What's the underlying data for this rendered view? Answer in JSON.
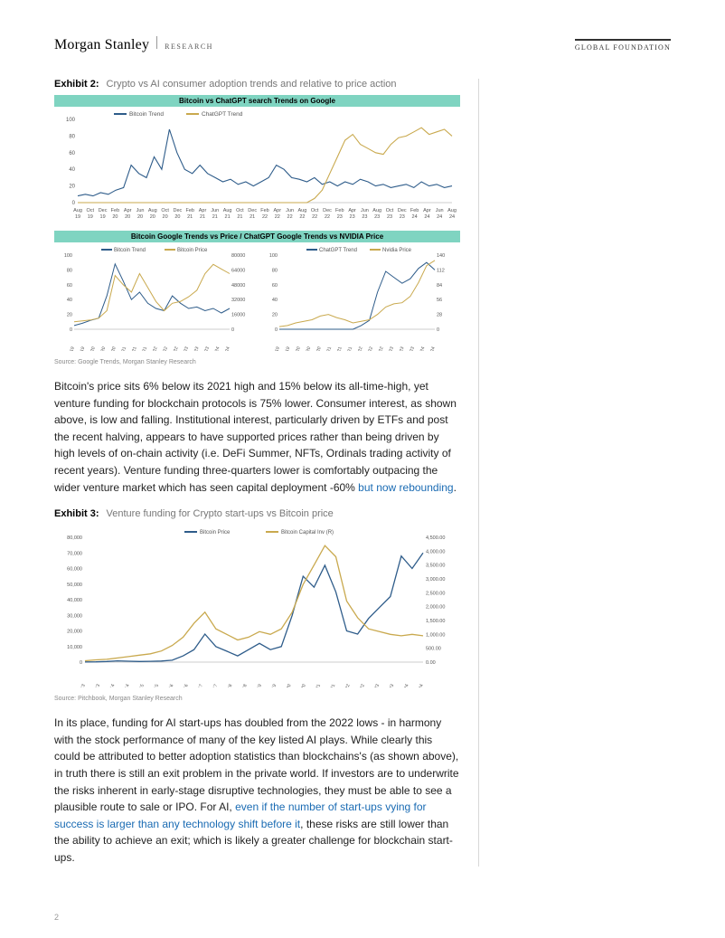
{
  "header": {
    "brand": "Morgan Stanley",
    "sub": "RESEARCH",
    "foundation": "GLOBAL FOUNDATION"
  },
  "exhibit2": {
    "label": "Exhibit 2:",
    "title": "Crypto vs AI consumer adoption trends and relative to price action",
    "chart1": {
      "title": "Bitcoin vs ChatGPT search Trends on Google",
      "title_bg": "#7fd4c1",
      "ylim": [
        0,
        100
      ],
      "ytick_step": 20,
      "series": [
        {
          "name": "Bitcoin Trend",
          "color": "#2e5c8a",
          "values": [
            8,
            10,
            8,
            12,
            10,
            15,
            18,
            45,
            35,
            30,
            55,
            40,
            88,
            60,
            40,
            35,
            45,
            35,
            30,
            25,
            28,
            22,
            25,
            20,
            25,
            30,
            45,
            40,
            30,
            28,
            25,
            30,
            22,
            25,
            20,
            25,
            22,
            28,
            25,
            20,
            22,
            18,
            20,
            22,
            18,
            25,
            20,
            22,
            18,
            20
          ]
        },
        {
          "name": "ChatGPT Trend",
          "color": "#c9a94e",
          "values": [
            0,
            0,
            0,
            0,
            0,
            0,
            0,
            0,
            0,
            0,
            0,
            0,
            0,
            0,
            0,
            0,
            0,
            0,
            0,
            0,
            0,
            0,
            0,
            0,
            0,
            0,
            0,
            0,
            0,
            0,
            0,
            5,
            15,
            35,
            55,
            75,
            82,
            70,
            65,
            60,
            58,
            70,
            78,
            80,
            85,
            90,
            82,
            85,
            88,
            80
          ]
        }
      ],
      "x_labels": [
        "Aug 19",
        "Oct 19",
        "Dec 19",
        "Feb 20",
        "Apr 20",
        "Jun 20",
        "Aug 20",
        "Oct 20",
        "Dec 20",
        "Feb 21",
        "Apr 21",
        "Jun 21",
        "Aug 21",
        "Oct 21",
        "Dec 21",
        "Feb 22",
        "Apr 22",
        "Jun 22",
        "Aug 22",
        "Oct 22",
        "Dec 22",
        "Feb 23",
        "Apr 23",
        "Jun 23",
        "Aug 23",
        "Oct 23",
        "Dec 23",
        "Feb 24",
        "Apr 24",
        "Jun 24",
        "Aug 24"
      ]
    },
    "chart2": {
      "title": "Bitcoin Google Trends vs Price / ChatGPT Google Trends vs NVIDIA Price",
      "title_bg": "#7fd4c1",
      "left": {
        "ylim_l": [
          0,
          100
        ],
        "ylim_r": [
          0,
          80000
        ],
        "series": [
          {
            "name": "Bitcoin Trend",
            "color": "#2e5c8a",
            "values": [
              5,
              8,
              12,
              15,
              45,
              88,
              65,
              40,
              50,
              35,
              28,
              25,
              45,
              35,
              28,
              30,
              25,
              28,
              22,
              28
            ]
          },
          {
            "name": "Bitcoin Price",
            "color": "#c9a94e",
            "values": [
              8000,
              9000,
              10000,
              12000,
              20000,
              58000,
              48000,
              40000,
              60000,
              45000,
              30000,
              20000,
              28000,
              30000,
              35000,
              42000,
              60000,
              70000,
              65000,
              60000
            ]
          }
        ],
        "x_labels": [
          "Aug 19",
          "Dec 19",
          "Apr 20",
          "Aug 20",
          "Dec 20",
          "Apr 21",
          "Aug 21",
          "Dec 21",
          "Apr 22",
          "Aug 22",
          "Dec 22",
          "Apr 23",
          "Aug 23",
          "Dec 23",
          "Apr 24",
          "Aug 24"
        ]
      },
      "right": {
        "ylim_l": [
          0,
          100
        ],
        "ylim_r": [
          0,
          140
        ],
        "series": [
          {
            "name": "ChatGPT Trend",
            "color": "#2e5c8a",
            "values": [
              0,
              0,
              0,
              0,
              0,
              0,
              0,
              0,
              0,
              0,
              5,
              12,
              50,
              78,
              70,
              62,
              68,
              82,
              90,
              80
            ]
          },
          {
            "name": "Nvidia Price",
            "color": "#c9a94e",
            "values": [
              5,
              7,
              12,
              15,
              18,
              25,
              28,
              22,
              18,
              12,
              15,
              18,
              28,
              42,
              48,
              50,
              62,
              88,
              120,
              130
            ]
          }
        ],
        "x_labels": [
          "Aug 19",
          "Dec 19",
          "Apr 20",
          "Aug 20",
          "Dec 20",
          "Apr 21",
          "Aug 21",
          "Dec 21",
          "Apr 22",
          "Aug 22",
          "Dec 22",
          "Apr 23",
          "Aug 23",
          "Dec 23",
          "Apr 24",
          "Aug 24"
        ]
      }
    },
    "source": "Source: Google Trends, Morgan Stanley Research"
  },
  "para1": {
    "text": "Bitcoin's price sits 6% below its 2021 high and 15% below its all-time-high, yet venture funding for blockchain protocols is 75% lower. Consumer interest, as shown above, is low and falling. Institutional interest, particularly driven by ETFs and post the recent halving, appears to have supported prices rather than being driven by high levels of on-chain activity (i.e. DeFi Summer, NFTs, Ordinals trading activity of recent years). Venture funding three-quarters lower is comfortably outpacing the wider venture market which has seen capital deployment -60% ",
    "link": "but now rebounding",
    "tail": "."
  },
  "exhibit3": {
    "label": "Exhibit 3:",
    "title": "Venture funding for Crypto start-ups vs Bitcoin price",
    "ylim_l": [
      0,
      80000
    ],
    "ylim_r": [
      0,
      4500
    ],
    "ytick_l": 10000,
    "ytick_r": 500,
    "series": [
      {
        "name": "Bitcoin Price",
        "color": "#2e5c8a",
        "values": [
          100,
          200,
          400,
          800,
          600,
          400,
          500,
          700,
          1200,
          4000,
          8000,
          18000,
          10000,
          7000,
          4000,
          8000,
          12000,
          8000,
          10000,
          30000,
          55000,
          48000,
          62000,
          45000,
          20000,
          18000,
          28000,
          35000,
          42000,
          68000,
          60000,
          70000
        ]
      },
      {
        "name": "Bitcoin Capital Inv (R)",
        "color": "#c9a94e",
        "values": [
          50,
          80,
          100,
          150,
          200,
          250,
          300,
          400,
          600,
          900,
          1400,
          1800,
          1200,
          1000,
          800,
          900,
          1100,
          1000,
          1200,
          1800,
          2800,
          3500,
          4200,
          3800,
          2200,
          1600,
          1200,
          1100,
          1000,
          950,
          1000,
          950
        ]
      }
    ],
    "x_labels": [
      "01-Jan-13",
      "01-Jul-13",
      "01-Jan-14",
      "01-Jul-14",
      "01-Jan-15",
      "01-Jul-15",
      "01-Jan-16",
      "01-Jul-16",
      "01-Jan-17",
      "01-Jul-17",
      "01-Jan-18",
      "01-Jul-18",
      "01-Jan-19",
      "01-Jul-19",
      "01-Jan-20",
      "01-Jul-20",
      "01-Jan-21",
      "01-Jul-21",
      "01-Jan-22",
      "01-Jul-22",
      "01-Jan-23",
      "01-Jul-23",
      "01-Jan-24",
      "01-Jul-24"
    ],
    "source": "Source: Pitchbook, Morgan Stanley Research"
  },
  "para2": {
    "text": "In its place, funding for AI start-ups has doubled from the 2022 lows - in harmony with the stock performance of many of the key listed AI plays. While clearly this could be attributed to better adoption statistics than blockchains's (as shown above), in truth there is still an exit problem in the private world. If investors are to underwrite the risks inherent in early-stage disruptive technologies, they must be able to see a plausible route to sale or IPO. For AI, ",
    "link": "even if the number of start-ups vying for success is larger than any technology shift before it",
    "tail": ", these risks are still lower than the ability to achieve an exit; which is likely a greater challenge for blockchain start-ups."
  },
  "page_number": "2",
  "colors": {
    "blue": "#2e5c8a",
    "gold": "#c9a94e",
    "teal": "#7fd4c1",
    "link": "#1a6bb3",
    "grid": "#e8e8e8"
  }
}
